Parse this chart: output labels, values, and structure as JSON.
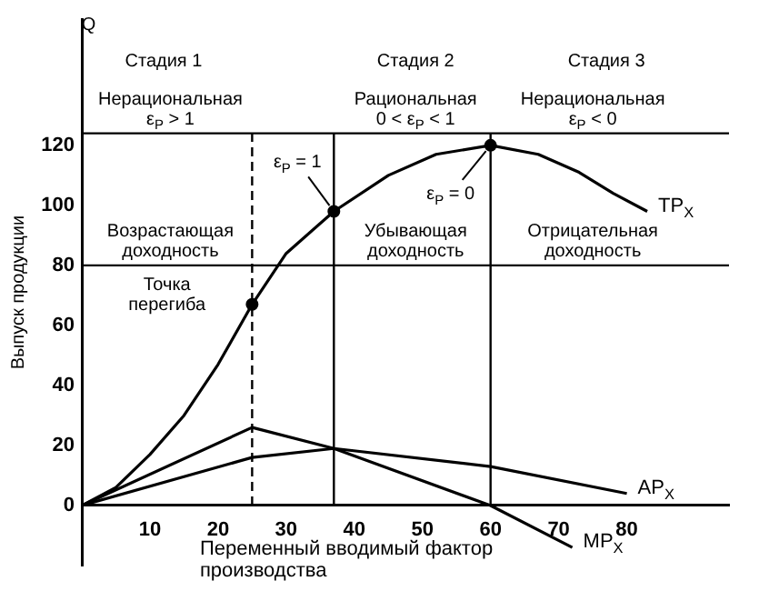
{
  "chart_data": {
    "type": "line",
    "ylabel": "Выпуск продукции",
    "xlabel": "Переменный вводимый фактор производства",
    "xlim": [
      0,
      95
    ],
    "xticks": [
      10,
      20,
      30,
      40,
      50,
      60,
      70,
      80
    ],
    "ylim": [
      -20,
      162
    ],
    "yticks": [
      0,
      20,
      40,
      60,
      80,
      100,
      120
    ],
    "grid": false,
    "legend": false,
    "marker": "none",
    "line_style": "solid",
    "series": [
      {
        "name": "TP$_{X}$",
        "color": "#000000",
        "x": [
          0,
          5,
          10,
          15,
          20,
          25,
          30,
          37,
          45,
          52,
          60,
          67,
          73,
          78,
          83
        ],
        "values": [
          0,
          6,
          17,
          30,
          47,
          67,
          84,
          98,
          110,
          117,
          120,
          117,
          111,
          104,
          98
        ]
      },
      {
        "name": "AP$_{X}$",
        "color": "#000000",
        "x": [
          0,
          25,
          37,
          60,
          80
        ],
        "values": [
          0,
          16,
          19,
          13,
          4
        ]
      },
      {
        "name": "MP$_{X}$",
        "color": "#000000",
        "x": [
          0,
          25,
          37,
          60,
          72
        ],
        "values": [
          0,
          26,
          19,
          0,
          -14
        ]
      },
      {
        "type": "scatter",
        "marker": "circle",
        "color": "#000000",
        "x": [
          25,
          37,
          60
        ],
        "values": [
          67,
          98,
          120
        ]
      }
    ],
    "ref_lines": [
      {
        "axis": "x",
        "value": 25,
        "line_style": "dashed"
      },
      {
        "axis": "x",
        "value": 37
      },
      {
        "axis": "x",
        "value": 60
      },
      {
        "axis": "y",
        "value": 80
      },
      {
        "axis": "y",
        "value": 124
      }
    ],
    "annotations": [
      "Q",
      "Стадия 1",
      "Стадия 2",
      "Стадия 3",
      "Нерациональная\nε$_{P}$ > 1",
      "Рациональная\n0 < ε$_{P}$ < 1",
      "Нерациональная\nε$_{P}$ < 0",
      {
        "text": "ε$_{P}$ = 1",
        "x": 37,
        "y": 98
      },
      {
        "text": "ε$_{P}$ = 0",
        "x": 60,
        "y": 120
      },
      "Возрастающая\nдоходность",
      "Убывающая\nдоходность",
      "Отрицательная\nдоходность",
      "Точка\nперегиба"
    ]
  }
}
